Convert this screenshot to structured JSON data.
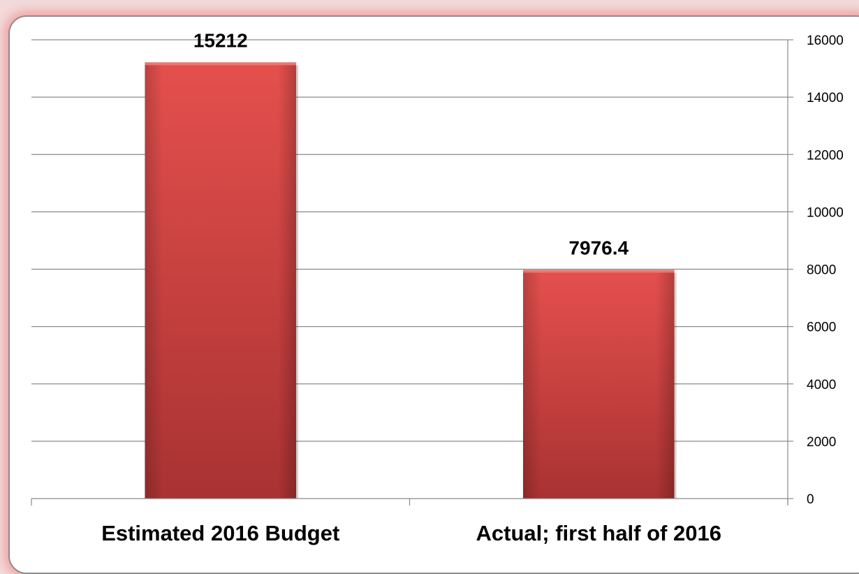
{
  "chart_data": {
    "type": "bar",
    "categories": [
      "Estimated 2016 Budget",
      "Actual; first half of 2016"
    ],
    "values": [
      15212,
      7976.4
    ],
    "data_labels": [
      "15212",
      "7976.4"
    ],
    "title": "",
    "xlabel": "",
    "ylabel": "",
    "ylim": [
      0,
      16000
    ],
    "yticks": [
      0,
      2000,
      4000,
      6000,
      8000,
      10000,
      12000,
      14000,
      16000
    ],
    "ytick_labels": [
      "0",
      "2000",
      "4000",
      "6000",
      "8000",
      "10000",
      "12000",
      "14000",
      "16000"
    ],
    "y_axis_side": "right",
    "grid": true,
    "legend": "none",
    "bar_color": "#d94545"
  }
}
